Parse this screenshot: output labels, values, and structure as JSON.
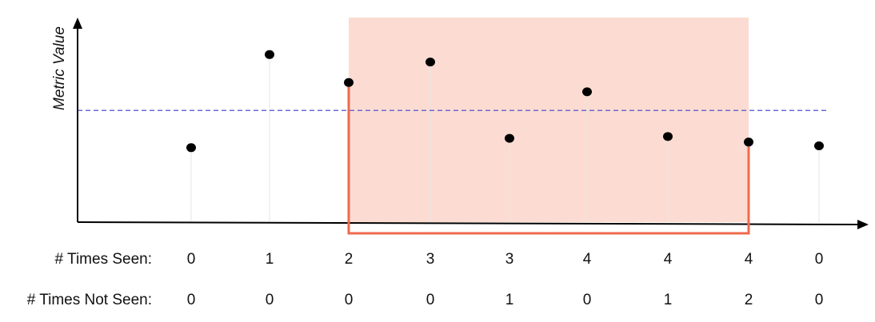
{
  "chart_data": {
    "type": "scatter",
    "ylabel": "Metric Value",
    "xlabel": "",
    "ylim": [
      0,
      10
    ],
    "threshold": 6.0,
    "points": [
      {
        "x": 0,
        "y": 4.0
      },
      {
        "x": 1,
        "y": 9.0
      },
      {
        "x": 2,
        "y": 7.5
      },
      {
        "x": 3,
        "y": 8.6
      },
      {
        "x": 4,
        "y": 4.5
      },
      {
        "x": 5,
        "y": 7.0
      },
      {
        "x": 6,
        "y": 4.6
      },
      {
        "x": 7,
        "y": 4.3
      },
      {
        "x": 8,
        "y": 4.1
      }
    ],
    "window": {
      "start_index": 2,
      "end_index": 7
    },
    "rows": [
      {
        "label": "# Times Seen:",
        "values": [
          "0",
          "1",
          "2",
          "3",
          "3",
          "4",
          "4",
          "4",
          "0"
        ]
      },
      {
        "label": "# Times Not Seen:",
        "values": [
          "0",
          "0",
          "0",
          "0",
          "1",
          "0",
          "1",
          "2",
          "0"
        ]
      }
    ]
  },
  "colors": {
    "window_fill": "#fcdcd2",
    "window_bracket": "#ef6a4c",
    "threshold": "#6a6ad0",
    "points": "#000000",
    "axes": "#000000",
    "stems": "#e6e6e6"
  }
}
